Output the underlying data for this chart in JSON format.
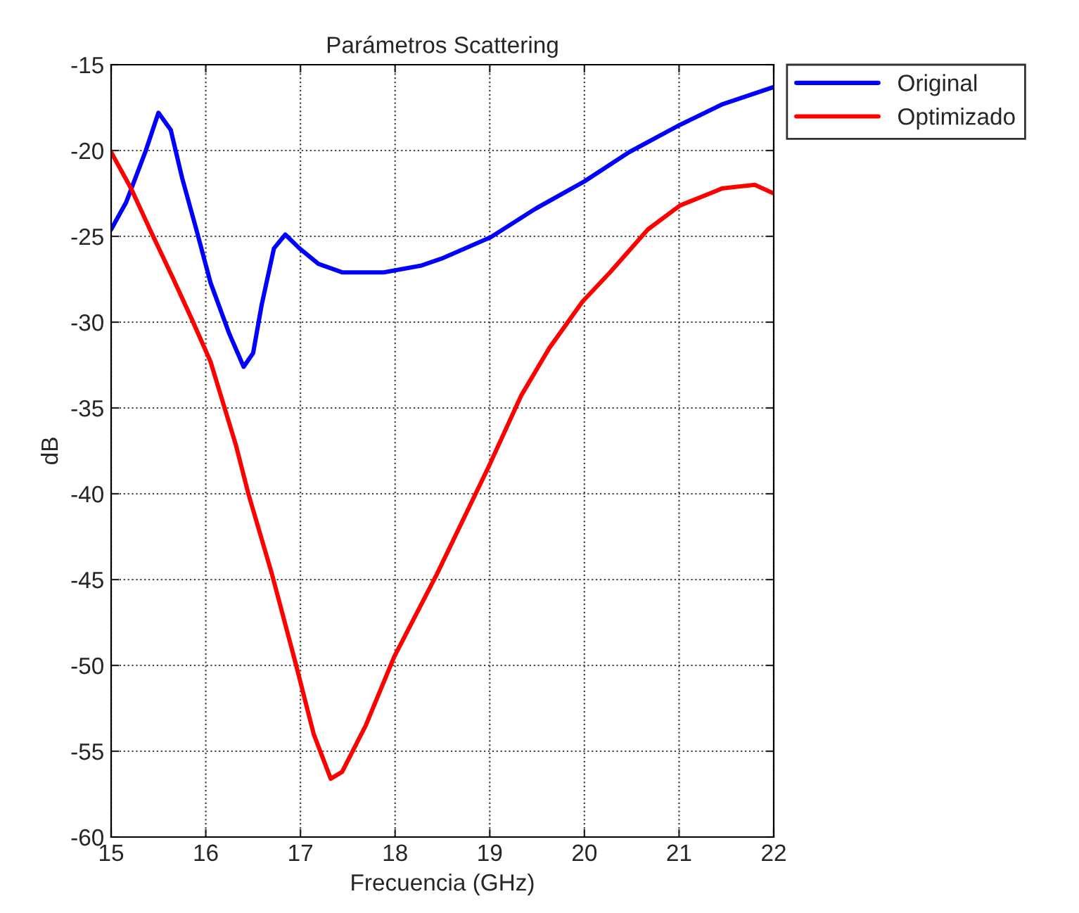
{
  "chart_data": {
    "type": "line",
    "title": "Parámetros Scattering",
    "xlabel": "Frecuencia (GHz)",
    "ylabel": "dB",
    "xlim": [
      15,
      22
    ],
    "xticks": [
      15,
      16,
      17,
      18,
      19,
      20,
      21,
      22
    ],
    "ylim": [
      -60,
      -15
    ],
    "yticks": [
      -60,
      -55,
      -50,
      -45,
      -40,
      -35,
      -30,
      -25,
      -20,
      -15
    ],
    "grid": true,
    "legend": "top right",
    "line_style": "solid",
    "marker": "none",
    "series": [
      {
        "name": "Original",
        "color": "#0000ff",
        "x": [
          15,
          15.16,
          15.36,
          15.5,
          15.63,
          15.75,
          15.9,
          16.05,
          16.25,
          16.4,
          16.5,
          16.59,
          16.72,
          16.84,
          16.99,
          17.19,
          17.44,
          17.88,
          18.28,
          18.49,
          19.01,
          19.48,
          20.0,
          20.47,
          21.01,
          21.46,
          22
        ],
        "values": [
          -24.6,
          -23.0,
          -20.1,
          -17.8,
          -18.8,
          -21.6,
          -24.6,
          -27.7,
          -30.7,
          -32.6,
          -31.8,
          -29.0,
          -25.7,
          -24.9,
          -25.7,
          -26.6,
          -27.1,
          -27.1,
          -26.7,
          -26.3,
          -25.05,
          -23.4,
          -21.8,
          -20.1,
          -18.5,
          -17.3,
          -16.3
        ]
      },
      {
        "name": "Optimizado",
        "color": "#ff0000",
        "x": [
          15,
          15.21,
          15.41,
          15.65,
          15.85,
          16.05,
          16.32,
          16.45,
          16.7,
          16.95,
          17.14,
          17.32,
          17.44,
          17.69,
          17.99,
          18.44,
          18.99,
          19.33,
          19.63,
          19.98,
          20.27,
          20.67,
          21.01,
          21.46,
          21.8,
          22
        ],
        "values": [
          -20.1,
          -22.2,
          -24.6,
          -27.4,
          -29.8,
          -32.3,
          -37.2,
          -40,
          -44.7,
          -49.9,
          -54,
          -56.6,
          -56.2,
          -53.5,
          -49.5,
          -44.7,
          -38.4,
          -34.3,
          -31.5,
          -28.8,
          -27.1,
          -24.6,
          -23.2,
          -22.2,
          -22.0,
          -22.5
        ]
      }
    ]
  }
}
